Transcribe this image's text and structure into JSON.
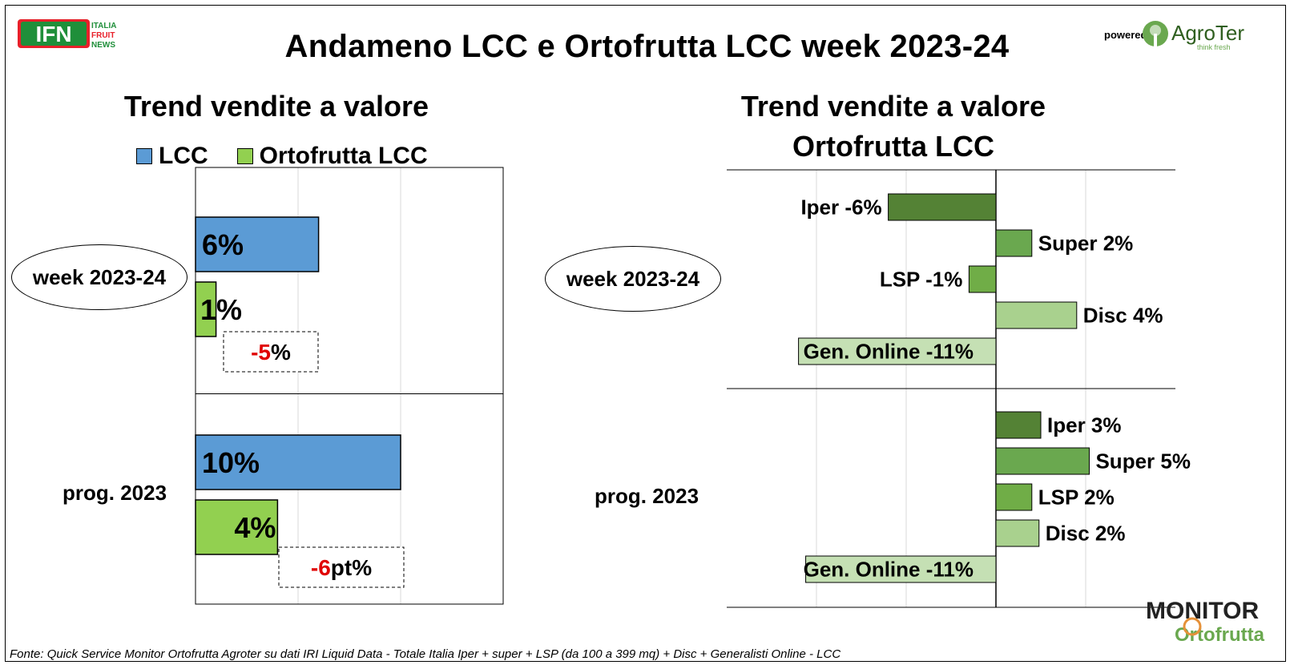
{
  "header": {
    "title": "Andameno LCC e Ortofrutta LCC week 2023-24",
    "powered_by": "powered by",
    "ifn_logo_text": "IFN",
    "ifn_logo_lines": [
      "ITALIA",
      "FRUIT",
      "NEWS"
    ],
    "agroter_name": "AgroTer",
    "agroter_tagline": "think fresh"
  },
  "left_panel": {
    "title": "Trend vendite a valore",
    "categories": [
      "week 2023-24",
      "prog. 2023"
    ],
    "diff_labels": [
      {
        "red": "-5",
        "black": "%"
      },
      {
        "red": "-6",
        "black": "pt%"
      }
    ]
  },
  "right_panel": {
    "title_line1": "Trend vendite a valore",
    "title_line2": "Ortofrutta LCC",
    "categories": [
      "week 2023-24",
      "prog. 2023"
    ]
  },
  "footer": {
    "source": "Fonte: Quick Service Monitor Ortofrutta Agroter su dati IRI Liquid Data - Totale Italia Iper + super + LSP (da 100 a 399 mq) + Disc + Generalisti Online - LCC",
    "monitor_logo_line1": "MONITOR",
    "monitor_logo_line2": "Ortofrutta"
  },
  "chart_data": [
    {
      "type": "bar",
      "orientation": "horizontal",
      "title": "Trend vendite a valore",
      "categories": [
        "week 2023-24",
        "prog. 2023"
      ],
      "legend_position": "top",
      "series": [
        {
          "name": "LCC",
          "color": "#5b9bd5",
          "values": [
            6,
            10
          ],
          "labels": [
            "6%",
            "10%"
          ]
        },
        {
          "name": "Ortofrutta LCC",
          "color": "#92d050",
          "values": [
            1,
            4
          ],
          "labels": [
            "1%",
            "4%"
          ]
        }
      ],
      "xlim": [
        0,
        15
      ],
      "grid": true
    },
    {
      "type": "bar",
      "orientation": "horizontal",
      "title": "Trend vendite a valore Ortofrutta LCC",
      "categories": [
        "week 2023-24",
        "prog. 2023"
      ],
      "groups": [
        {
          "category": "week 2023-24",
          "bars": [
            {
              "channel": "Iper",
              "value": -6,
              "label": "Iper -6%",
              "color": "#548235"
            },
            {
              "channel": "Super",
              "value": 2,
              "label": "Super 2%",
              "color": "#6aa84f"
            },
            {
              "channel": "LSP",
              "value": -1.5,
              "label": "LSP -1%",
              "color": "#70ad47"
            },
            {
              "channel": "Disc",
              "value": 4.5,
              "label": "Disc 4%",
              "color": "#a9d18e"
            },
            {
              "channel": "Gen. Online",
              "value": -11,
              "label": "Gen. Online -11%",
              "color": "#c5e0b4"
            }
          ]
        },
        {
          "category": "prog. 2023",
          "bars": [
            {
              "channel": "Iper",
              "value": 2.5,
              "label": "Iper 3%",
              "color": "#548235"
            },
            {
              "channel": "Super",
              "value": 5.2,
              "label": "Super 5%",
              "color": "#6aa84f"
            },
            {
              "channel": "LSP",
              "value": 2,
              "label": "LSP 2%",
              "color": "#70ad47"
            },
            {
              "channel": "Disc",
              "value": 2.4,
              "label": "Disc 2%",
              "color": "#a9d18e"
            },
            {
              "channel": "Gen. Online",
              "value": -10.6,
              "label": "Gen. Online -11%",
              "color": "#c5e0b4"
            }
          ]
        }
      ],
      "xlim": [
        -15,
        10
      ],
      "grid": true
    }
  ]
}
